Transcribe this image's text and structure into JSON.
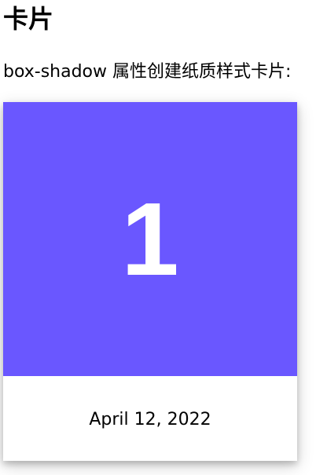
{
  "page": {
    "title": "卡片",
    "description": "box-shadow 属性创建纸质样式卡片:"
  },
  "card": {
    "number": "1",
    "date": "April 12, 2022",
    "header_color": "#6a57ff",
    "footer_color": "#ffffff"
  }
}
